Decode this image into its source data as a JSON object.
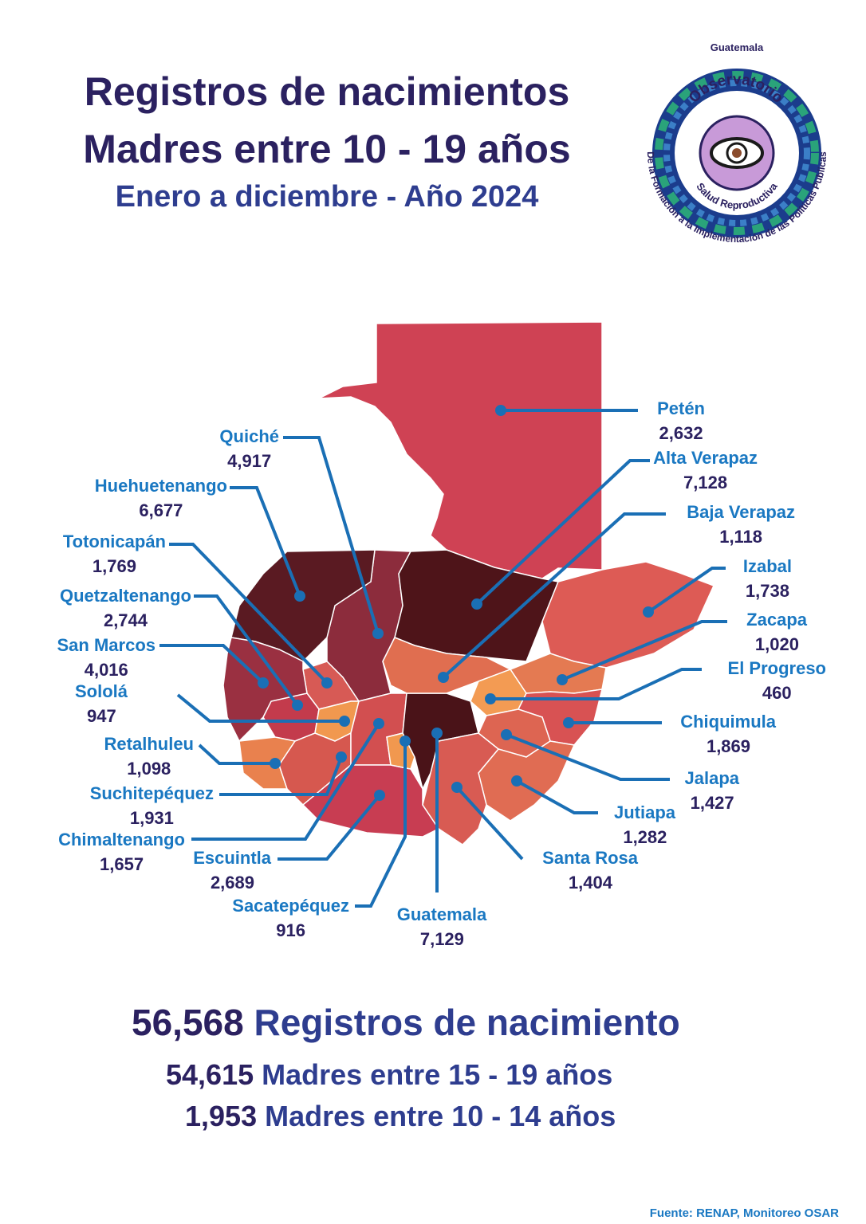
{
  "title": {
    "line1": "Registros de nacimientos",
    "line2": "Madres entre 10 - 19 años",
    "line3": "Enero a diciembre - Año 2024"
  },
  "logo": {
    "top_text": "Guatemala",
    "name_line1": "Observatorio",
    "name_line2": "Salud Reproductiva",
    "ring_text": "De la Formación a la Implementación de las Políticas Publicas"
  },
  "departments": [
    {
      "name": "Petén",
      "value": "2,632",
      "color": "#cf4254"
    },
    {
      "name": "Quiché",
      "value": "4,917",
      "color": "#8c2c3c"
    },
    {
      "name": "Huehuetenango",
      "value": "6,677",
      "color": "#5a1a22"
    },
    {
      "name": "Totonicapán",
      "value": "1,769",
      "color": "#d75a55"
    },
    {
      "name": "Quetzaltenango",
      "value": "2,744",
      "color": "#c33b4c"
    },
    {
      "name": "San Marcos",
      "value": "4,016",
      "color": "#9a3041"
    },
    {
      "name": "Sololá",
      "value": "947",
      "color": "#f1984f"
    },
    {
      "name": "Retalhuleu",
      "value": "1,098",
      "color": "#e9814e"
    },
    {
      "name": "Suchitepéquez",
      "value": "1,931",
      "color": "#d6584f"
    },
    {
      "name": "Chimaltenango",
      "value": "1,657",
      "color": "#d24f50"
    },
    {
      "name": "Escuintla",
      "value": "2,689",
      "color": "#c83d52"
    },
    {
      "name": "Sacatepéquez",
      "value": "916",
      "color": "#f1984f"
    },
    {
      "name": "Guatemala",
      "value": "7,129",
      "color": "#4a1318"
    },
    {
      "name": "Alta Verapaz",
      "value": "7,128",
      "color": "#4e1419"
    },
    {
      "name": "Baja Verapaz",
      "value": "1,118",
      "color": "#e06e50"
    },
    {
      "name": "Izabal",
      "value": "1,738",
      "color": "#dd5b55"
    },
    {
      "name": "Zacapa",
      "value": "1,020",
      "color": "#e47a52"
    },
    {
      "name": "El Progreso",
      "value": "460",
      "color": "#f39b53"
    },
    {
      "name": "Chiquimula",
      "value": "1,869",
      "color": "#d85253"
    },
    {
      "name": "Jalapa",
      "value": "1,427",
      "color": "#dd6552"
    },
    {
      "name": "Jutiapa",
      "value": "1,282",
      "color": "#e06c53"
    },
    {
      "name": "Santa Rosa",
      "value": "1,404",
      "color": "#d85b53"
    }
  ],
  "summary": {
    "total_value": "56,568",
    "total_label": "Registros de nacimiento",
    "group_15_19_value": "54,615",
    "group_15_19_label": "Madres entre 15 - 19 años",
    "group_10_14_value": "1,953",
    "group_10_14_label": "Madres entre 10 - 14 años"
  },
  "source": "Fuente: RENAP, Monitoreo OSAR",
  "colors": {
    "title": "#2b2160",
    "subtitle": "#2e3d8f",
    "label": "#1a78c2",
    "leader": "#1a6fb5"
  }
}
